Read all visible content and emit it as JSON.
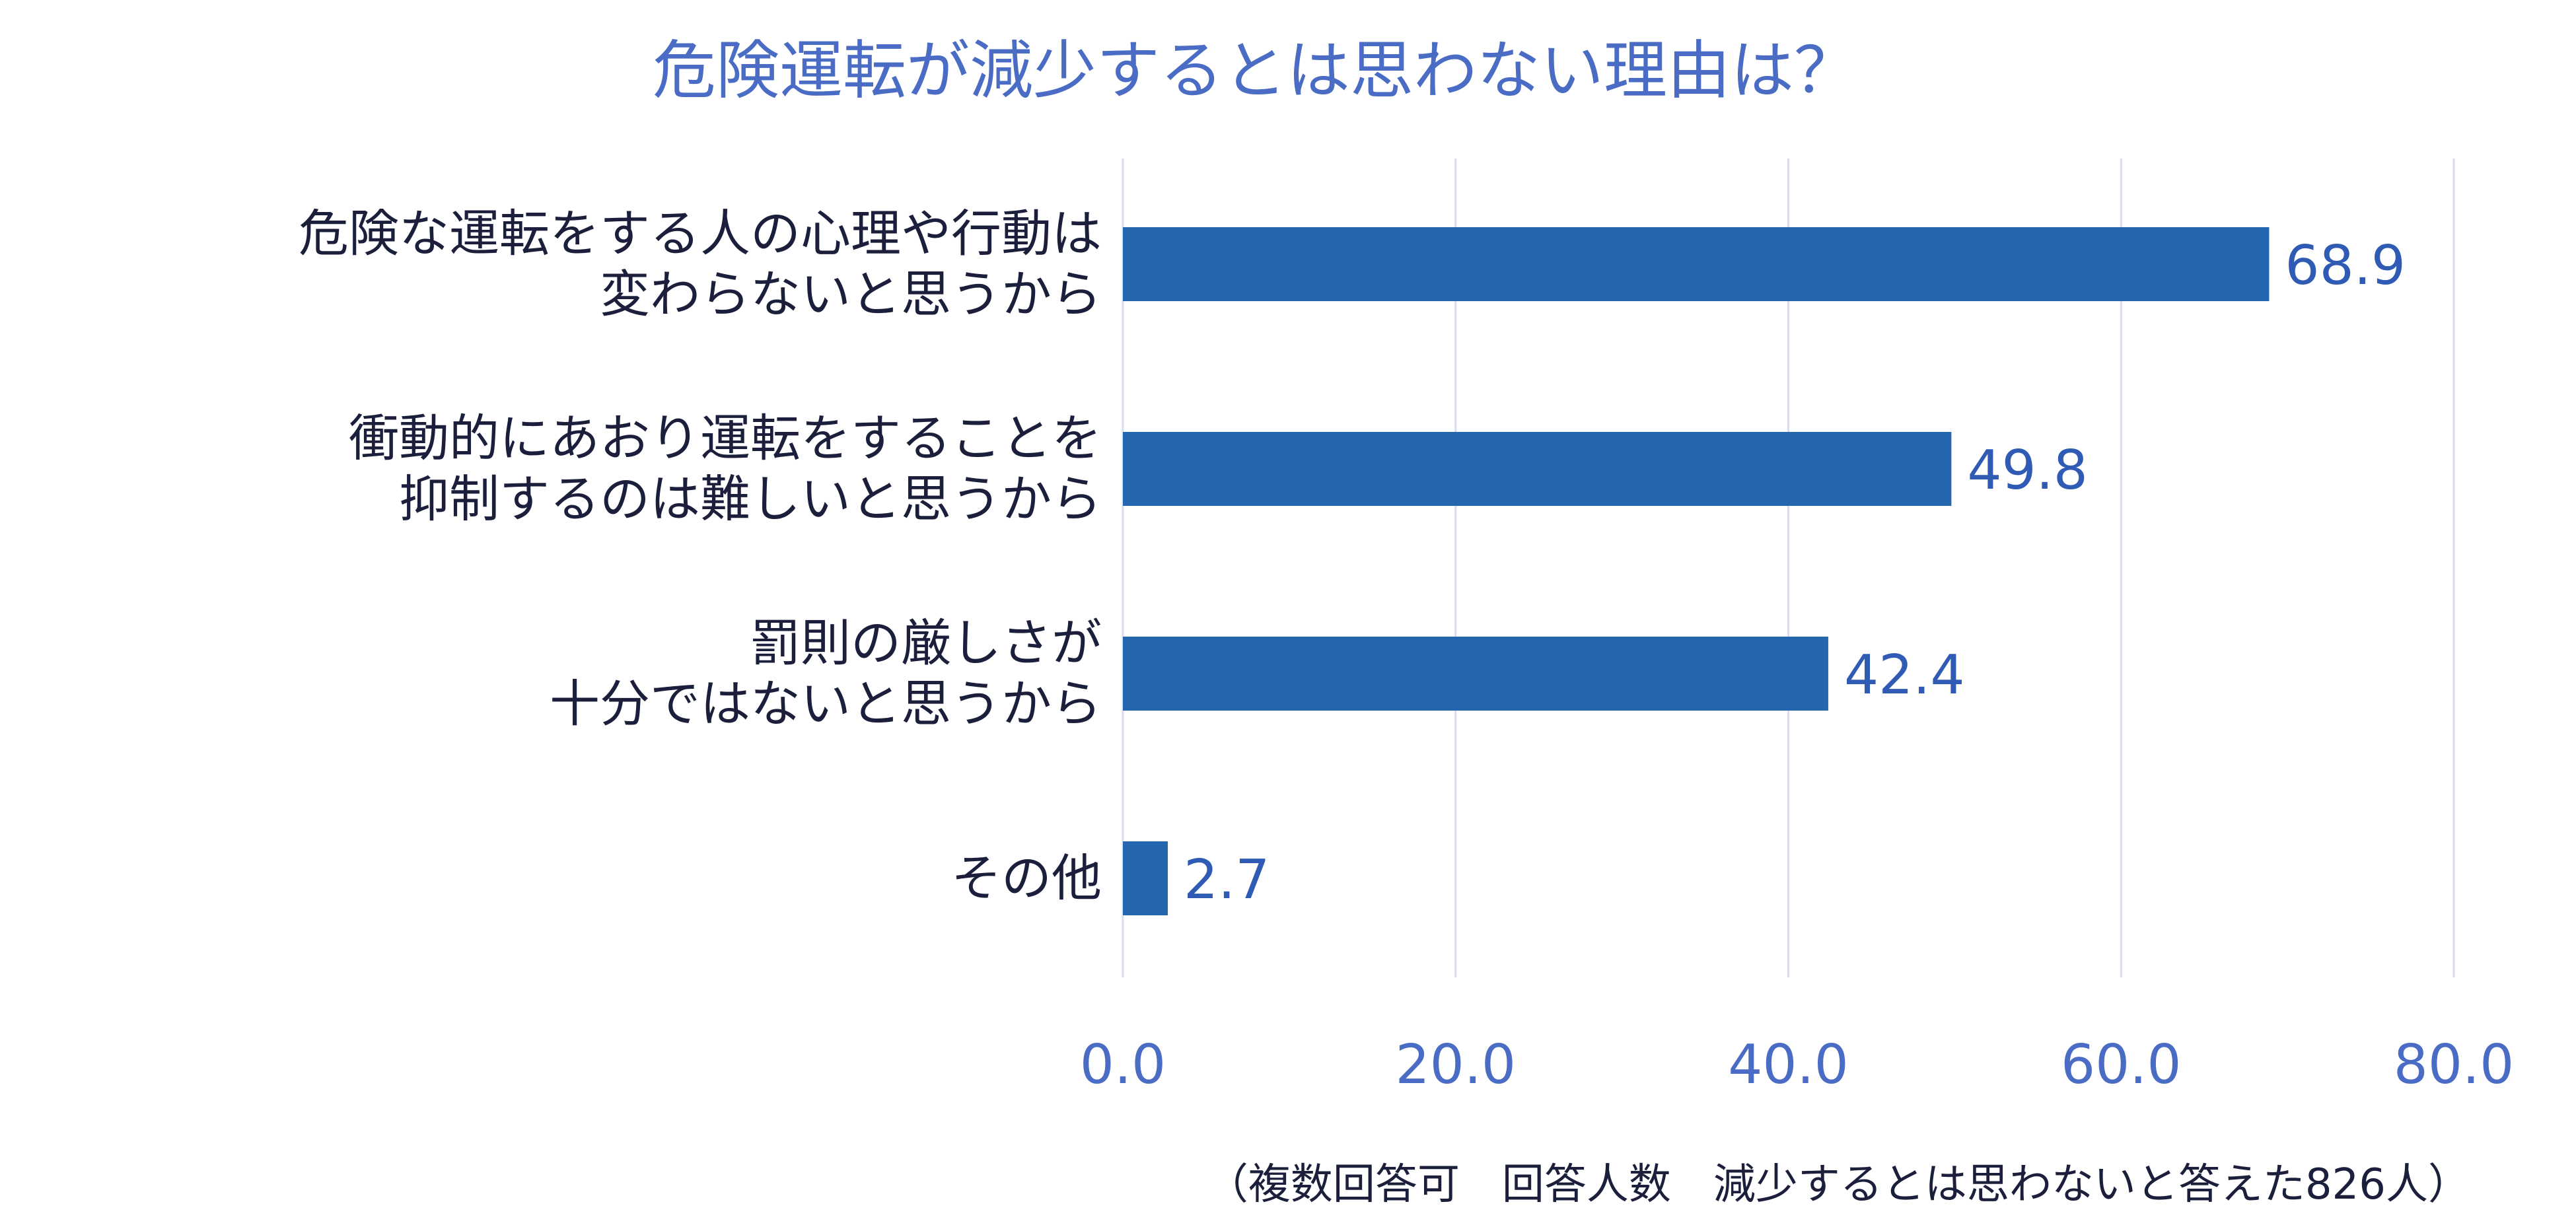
{
  "chart_data": {
    "type": "bar",
    "orientation": "horizontal",
    "title": "危険運転が減少するとは思わない理由は？",
    "categories": [
      [
        "危険な運転をする人の心理や行動は",
        "変わらないと思うから"
      ],
      [
        "衝動的にあおり運転をすることを",
        "抑制するのは難しいと思うから"
      ],
      [
        "罰則の厳しさが",
        "十分ではないと思うから"
      ],
      [
        "その他"
      ]
    ],
    "values": [
      68.9,
      49.8,
      42.4,
      2.7
    ],
    "value_labels": [
      "68.9",
      "49.8",
      "42.4",
      "2.7"
    ],
    "xlim": [
      0,
      80
    ],
    "x_ticks": [
      0,
      20,
      40,
      60,
      80
    ],
    "x_tick_labels": [
      "0.0",
      "20.0",
      "40.0",
      "60.0",
      "80.0"
    ],
    "grid": "vertical",
    "legend": "none",
    "footnote": "（複数回答可　回答人数　減少するとは思わないと答えた826人）"
  },
  "colors": {
    "bar": "#2366ad",
    "title": "#4a6cc4",
    "axis_text": "#4a6cc4",
    "category_text": "#1b1f3b",
    "value_text": "#2f5bb5",
    "gridline": "#d9dcef"
  }
}
